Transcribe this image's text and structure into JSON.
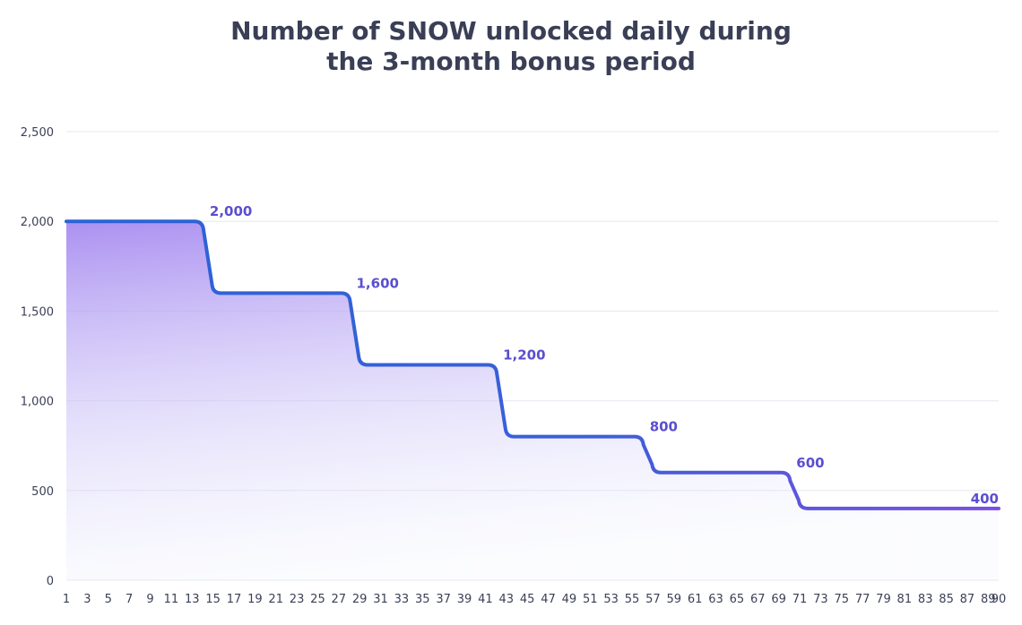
{
  "chart_data": {
    "type": "line",
    "title_lines": [
      "Number of SNOW unlocked daily during",
      "the 3-month bonus period"
    ],
    "xlabel": "",
    "ylabel": "",
    "x_ticks": [
      1,
      3,
      5,
      7,
      9,
      11,
      13,
      15,
      17,
      19,
      21,
      23,
      25,
      27,
      29,
      31,
      33,
      35,
      37,
      39,
      41,
      43,
      45,
      47,
      49,
      51,
      53,
      55,
      57,
      59,
      61,
      63,
      65,
      67,
      69,
      71,
      73,
      75,
      77,
      79,
      81,
      83,
      85,
      87,
      89,
      90
    ],
    "y_ticks": [
      {
        "value": 0,
        "label": "0"
      },
      {
        "value": 500,
        "label": "500"
      },
      {
        "value": 1000,
        "label": "1,000"
      },
      {
        "value": 1500,
        "label": "1,500"
      },
      {
        "value": 2000,
        "label": "2,000"
      },
      {
        "value": 2500,
        "label": "2,500"
      }
    ],
    "xlim": [
      1,
      90
    ],
    "ylim": [
      0,
      2500
    ],
    "grid": "horizontal",
    "fill": "area gradient",
    "steps": [
      {
        "x_start": 1,
        "x_end": 14,
        "y": 2000,
        "label": "2,000"
      },
      {
        "x_start": 15,
        "x_end": 28,
        "y": 1600,
        "label": "1,600"
      },
      {
        "x_start": 29,
        "x_end": 42,
        "y": 1200,
        "label": "1,200"
      },
      {
        "x_start": 43,
        "x_end": 56,
        "y": 800,
        "label": "800"
      },
      {
        "x_start": 57,
        "x_end": 70,
        "y": 600,
        "label": "600"
      },
      {
        "x_start": 71,
        "x_end": 90,
        "y": 400,
        "label": "400"
      }
    ],
    "colors": {
      "line_start": "#2a63d6",
      "line_end": "#7b4fe0",
      "fill_top": "#a78bf0",
      "label": "#5a4fcf",
      "grid": "#e6e8ef",
      "axis_text": "#3a3f56"
    }
  }
}
